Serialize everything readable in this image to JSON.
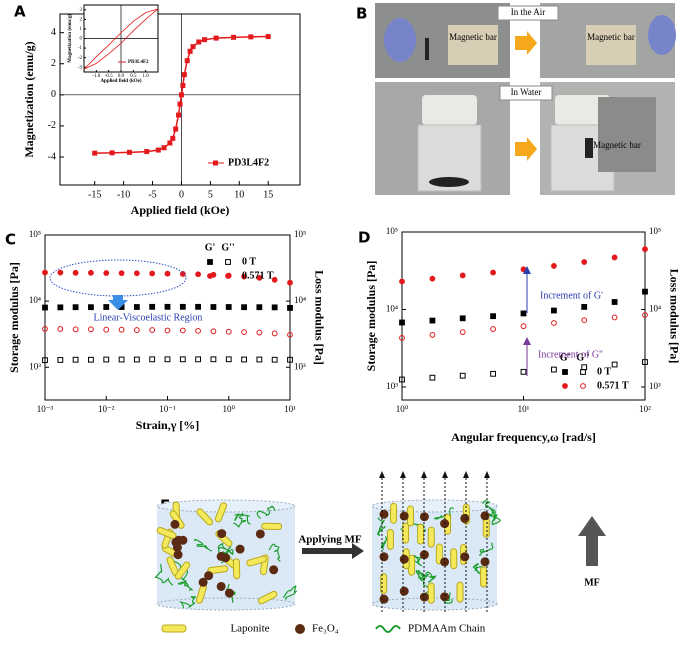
{
  "panels": {
    "a": "A",
    "b": "B",
    "c": "C",
    "d": "D",
    "e": "E"
  },
  "chart_data": [
    {
      "type": "line",
      "xlabel": "Applied field (kOe)",
      "ylabel": "Magnetization (emu/g)",
      "x": [
        -15,
        -12,
        -9,
        -6,
        -4,
        -3,
        -2,
        -1.5,
        -1,
        -0.5,
        -0.25,
        0,
        0.25,
        0.5,
        1,
        1.5,
        2,
        3,
        4,
        6,
        9,
        12,
        15
      ],
      "series": [
        {
          "name": "PD3L4F2",
          "color": "#e3191c",
          "values": [
            -3.75,
            -3.73,
            -3.7,
            -3.65,
            -3.55,
            -3.4,
            -3.1,
            -2.8,
            -2.2,
            -1.3,
            -0.6,
            0,
            0.6,
            1.3,
            2.2,
            2.8,
            3.1,
            3.4,
            3.55,
            3.65,
            3.7,
            3.73,
            3.75
          ]
        }
      ],
      "xlim": [
        -21,
        20.5
      ],
      "ylim": [
        -5.8,
        5.2
      ],
      "xticks": [
        -15,
        -10,
        -5,
        0,
        5,
        10,
        15
      ],
      "yticks": [
        -4,
        -2,
        0,
        2,
        4
      ],
      "legend": "lower right"
    },
    {
      "type": "line",
      "xlabel": "Applied field (kOe)",
      "ylabel": "Magnetization (emu/g)",
      "x": [
        -1.5,
        -1,
        -0.5,
        0,
        0.5,
        1,
        1.5,
        1,
        0.5,
        0,
        -0.5,
        -1,
        -1.5
      ],
      "series": [
        {
          "name": "PD3L4F2",
          "color": "#e3191c",
          "values": [
            -3.2,
            -2.6,
            -1.6,
            -0.5,
            0.8,
            2,
            3.1,
            2.7,
            1.8,
            0.6,
            -0.7,
            -1.9,
            -3.2
          ]
        }
      ],
      "xlim": [
        -1.5,
        1.5
      ],
      "ylim": [
        -3.5,
        3.5
      ],
      "xticks": [
        {
          "value": -1,
          "label": "-1.0"
        },
        {
          "value": -0.5,
          "label": "-0.5"
        },
        {
          "value": 0,
          "label": "0.0"
        },
        {
          "value": 0.5,
          "label": "0.5"
        },
        {
          "value": 1,
          "label": "1.0"
        }
      ],
      "yticks": [
        -3,
        -2,
        -1,
        0,
        1,
        2,
        3
      ],
      "legend": "lower right"
    },
    {
      "type": "scatter",
      "xlabel": "Strain,γ [%]",
      "ylabel": "Storage modulus [Pa]",
      "y2label": "Loss modulus [Pa]",
      "log_x": true,
      "log_y": true,
      "x": [
        0.001,
        0.00178,
        0.00316,
        0.00562,
        0.01,
        0.0178,
        0.0316,
        0.0562,
        0.1,
        0.178,
        0.316,
        0.562,
        1,
        1.78,
        3.16,
        5.62,
        10
      ],
      "series": [
        {
          "color": "#000000",
          "marker": "square",
          "filled": true,
          "values": [
            8000,
            8050,
            8100,
            8100,
            8150,
            8150,
            8150,
            8200,
            8200,
            8200,
            8200,
            8150,
            8150,
            8100,
            8100,
            8050,
            7900
          ]
        },
        {
          "color": "#000000",
          "marker": "square",
          "filled": false,
          "axis": "y2",
          "values": [
            1280,
            1290,
            1300,
            1300,
            1310,
            1310,
            1310,
            1320,
            1320,
            1320,
            1320,
            1320,
            1320,
            1310,
            1310,
            1300,
            1300
          ]
        },
        {
          "color": "#e3191c",
          "marker": "circle",
          "filled": true,
          "values": [
            27000,
            27000,
            26800,
            26800,
            26600,
            26500,
            26400,
            26200,
            26000,
            25800,
            25500,
            25000,
            24400,
            23500,
            22500,
            21000,
            19000
          ]
        },
        {
          "color": "#e3191c",
          "marker": "circle",
          "filled": false,
          "axis": "y2",
          "values": [
            3800,
            3800,
            3750,
            3750,
            3700,
            3700,
            3650,
            3650,
            3600,
            3600,
            3550,
            3500,
            3450,
            3400,
            3350,
            3250,
            3100
          ]
        }
      ],
      "legend": {
        "columns": [
          "G'",
          "G''"
        ],
        "rows": [
          "0 T",
          "0.571 T"
        ],
        "corner": "upper right"
      },
      "annotations": [
        "Linear-Viscoelastic Region"
      ],
      "xlim": [
        0.001,
        10
      ],
      "ylim": [
        320,
        100000
      ],
      "y2lim": [
        320,
        100000
      ],
      "xticks": [
        {
          "value": 0.001,
          "label": "10⁻³"
        },
        {
          "value": 0.01,
          "label": "10⁻²"
        },
        {
          "value": 0.1,
          "label": "10⁻¹"
        },
        {
          "value": 1,
          "label": "10⁰"
        },
        {
          "value": 10,
          "label": "10¹"
        }
      ],
      "yticks": [
        {
          "value": 1000,
          "label": "10³"
        },
        {
          "value": 10000,
          "label": "10⁴"
        },
        {
          "value": 100000,
          "label": "10⁵"
        }
      ],
      "y2ticks": [
        {
          "value": 1000,
          "label": "10³"
        },
        {
          "value": 10000,
          "label": "10⁴"
        },
        {
          "value": 100000,
          "label": "10⁵"
        }
      ]
    },
    {
      "type": "scatter",
      "xlabel": "Angular frequency,ω [rad/s]",
      "ylabel": "Storage modulus [Pa]",
      "y2label": "Loss modulus [Pa]",
      "log_x": true,
      "log_y": true,
      "x": [
        1,
        1.78,
        3.16,
        5.62,
        10,
        17.8,
        31.6,
        56.2,
        100
      ],
      "series": [
        {
          "color": "#000000",
          "marker": "square",
          "filled": true,
          "values": [
            6800,
            7200,
            7700,
            8200,
            8900,
            9700,
            10800,
            12500,
            17000
          ]
        },
        {
          "color": "#000000",
          "marker": "square",
          "filled": false,
          "axis": "y2",
          "values": [
            1250,
            1320,
            1400,
            1480,
            1570,
            1680,
            1800,
            1950,
            2100
          ]
        },
        {
          "color": "#e3191c",
          "marker": "circle",
          "filled": true,
          "values": [
            23000,
            25000,
            27500,
            30000,
            33000,
            36500,
            41000,
            47000,
            60000
          ]
        },
        {
          "color": "#e3191c",
          "marker": "circle",
          "filled": false,
          "axis": "y2",
          "values": [
            4300,
            4700,
            5100,
            5600,
            6100,
            6700,
            7300,
            7900,
            8500
          ]
        }
      ],
      "legend": {
        "columns": [
          "G'",
          "G''"
        ],
        "rows": [
          "0 T",
          "0.571 T"
        ],
        "corner": "lower right"
      },
      "annotations": [
        "Increment of G'",
        "Increment of G''"
      ],
      "xlim": [
        1,
        100
      ],
      "ylim": [
        680,
        100000
      ],
      "y2lim": [
        680,
        100000
      ],
      "xticks": [
        {
          "value": 1,
          "label": "10⁰"
        },
        {
          "value": 10,
          "label": "10¹"
        },
        {
          "value": 100,
          "label": "10²"
        }
      ],
      "yticks": [
        {
          "value": 1000,
          "label": "10³"
        },
        {
          "value": 10000,
          "label": "10⁴"
        },
        {
          "value": 100000,
          "label": "10⁵"
        }
      ],
      "y2ticks": [
        {
          "value": 1000,
          "label": "10³"
        },
        {
          "value": 10000,
          "label": "10⁴"
        },
        {
          "value": 100000,
          "label": "10⁵"
        }
      ]
    }
  ],
  "photos": {
    "air": {
      "title": "In the Air",
      "labels": [
        "Magnetic bar",
        "Magnetic bar"
      ]
    },
    "water": {
      "title": "In Water",
      "labels": [
        "Magnetic bar"
      ]
    }
  },
  "diagram": {
    "arrow": "Applying MF",
    "field": "MF",
    "legend": [
      "Laponite",
      "Fe₃O₄",
      "PDMAAm Chain"
    ]
  }
}
